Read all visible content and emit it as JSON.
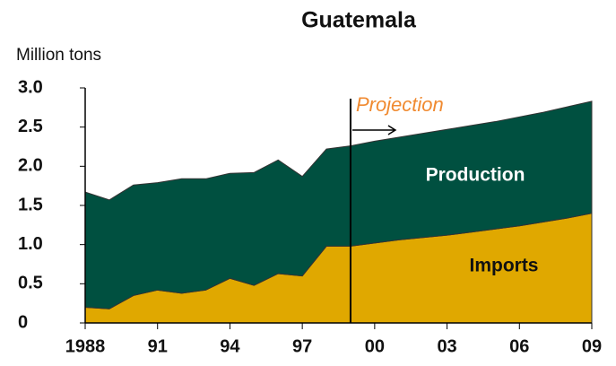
{
  "chart_data": {
    "type": "stacked_area",
    "title": "Guatemala",
    "y_label": "Million tons",
    "x": [
      1988,
      1989,
      1990,
      1991,
      1992,
      1993,
      1994,
      1995,
      1996,
      1997,
      1998,
      1999,
      2000,
      2001,
      2002,
      2003,
      2004,
      2005,
      2006,
      2007,
      2008,
      2009
    ],
    "xlim": [
      1988,
      2009
    ],
    "xticks": [
      {
        "value": 1988,
        "label": "1988"
      },
      {
        "value": 1991,
        "label": "91"
      },
      {
        "value": 1994,
        "label": "94"
      },
      {
        "value": 1997,
        "label": "97"
      },
      {
        "value": 2000,
        "label": "00"
      },
      {
        "value": 2003,
        "label": "03"
      },
      {
        "value": 2006,
        "label": "06"
      },
      {
        "value": 2009,
        "label": "09"
      }
    ],
    "ylim": [
      0,
      3
    ],
    "yticks": [
      0,
      0.5,
      {
        "value": 1,
        "label": "1.0"
      },
      1.5,
      {
        "value": 2,
        "label": "2.0"
      },
      2.5,
      {
        "value": 3,
        "label": "3.0"
      }
    ],
    "series": [
      {
        "name": "Imports",
        "color": "#e0a800",
        "values": [
          0.2,
          0.18,
          0.35,
          0.42,
          0.38,
          0.42,
          0.57,
          0.48,
          0.63,
          0.6,
          0.98,
          0.98,
          1.02,
          1.06,
          1.09,
          1.12,
          1.16,
          1.2,
          1.24,
          1.29,
          1.34,
          1.4
        ]
      },
      {
        "name": "Production",
        "color": "#005040",
        "values": [
          1.47,
          1.39,
          1.41,
          1.37,
          1.46,
          1.42,
          1.34,
          1.44,
          1.45,
          1.27,
          1.24,
          1.28,
          1.3,
          1.31,
          1.33,
          1.35,
          1.36,
          1.37,
          1.39,
          1.4,
          1.42,
          1.43
        ]
      }
    ],
    "annotation": {
      "text": "Projection",
      "x": 1999
    }
  }
}
